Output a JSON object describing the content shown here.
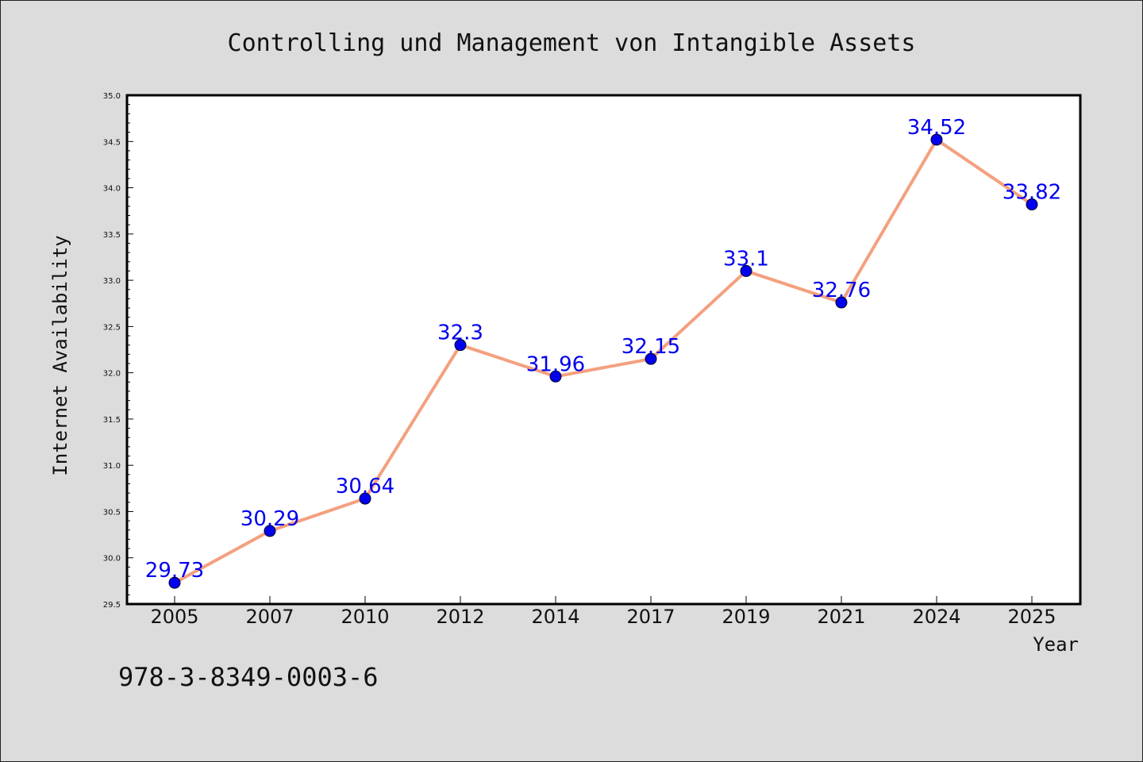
{
  "chart_data": {
    "type": "line",
    "title": "Controlling und Management von Intangible Assets",
    "xlabel": "Year",
    "ylabel": "Internet Availability",
    "categories": [
      "2005",
      "2007",
      "2010",
      "2012",
      "2014",
      "2017",
      "2019",
      "2021",
      "2024",
      "2025"
    ],
    "series": [
      {
        "values": [
          29.73,
          30.29,
          30.64,
          32.3,
          31.96,
          32.15,
          33.1,
          32.76,
          34.52,
          33.82
        ]
      }
    ],
    "data_labels": [
      "29.73",
      "30.29",
      "30.64",
      "32.3",
      "31.96",
      "32.15",
      "33.1",
      "32.76",
      "34.52",
      "33.82"
    ],
    "ylim": [
      29.5,
      35.0
    ],
    "yticks": [
      "29.5",
      "30.0",
      "30.5",
      "31.0",
      "31.5",
      "32.0",
      "32.5",
      "33.0",
      "33.5",
      "34.0",
      "34.5",
      "35.0"
    ],
    "grid": false,
    "legend": "none",
    "colors": {
      "line": "#f4a07f",
      "marker": "#0000ee",
      "label": "#0000ee",
      "background": "#dcdcdc",
      "plot_background": "#ffffff"
    }
  },
  "footer": {
    "isbn": "978-3-8349-0003-6"
  }
}
